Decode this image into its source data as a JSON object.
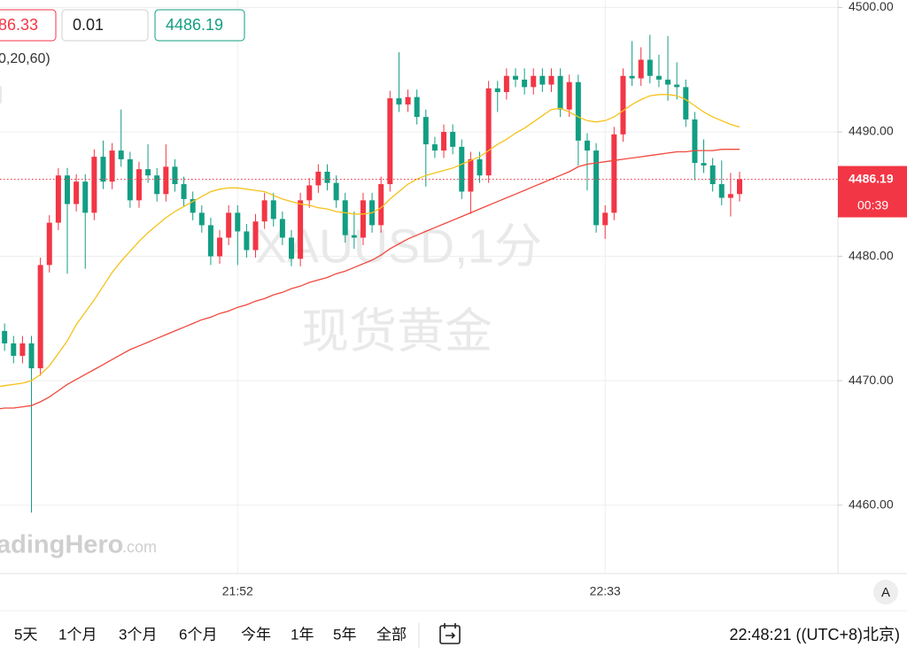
{
  "toolbar": {
    "sell_price": "86.33",
    "quantity": "0.01",
    "buy_price": "4486.19"
  },
  "indicator_label": "0,20,60)",
  "chart_data": {
    "type": "candlestick",
    "watermark": [
      "XAUUSD,1分",
      "现货黄金"
    ],
    "categories": [
      null,
      null,
      null,
      null,
      null,
      null,
      null,
      null,
      null,
      null,
      null,
      null,
      null,
      null,
      null,
      null,
      null,
      null,
      null,
      null,
      null,
      null,
      null,
      null,
      null,
      null,
      null,
      "21:52",
      null,
      null,
      null,
      null,
      null,
      null,
      null,
      null,
      null,
      null,
      null,
      null,
      null,
      null,
      null,
      null,
      null,
      null,
      null,
      null,
      null,
      null,
      null,
      null,
      null,
      null,
      null,
      null,
      null,
      null,
      null,
      null,
      null,
      null,
      null,
      null,
      null,
      null,
      null,
      null,
      "22:33",
      null,
      null,
      null,
      null,
      null,
      null,
      null,
      null,
      null,
      null,
      null,
      null,
      null,
      null,
      null
    ],
    "open": [
      4474.5,
      4474.0,
      4473.0,
      4472.0,
      4473.0,
      4471.0,
      4479.3,
      4482.7,
      4486.5,
      4484.2,
      4486.0,
      4483.5,
      4488.0,
      4486.0,
      4488.5,
      4487.8,
      4484.5,
      4487.0,
      4486.5,
      4485.0,
      4487.2,
      4485.8,
      4484.6,
      4483.5,
      4482.5,
      4480.0,
      4481.5,
      4483.5,
      4482.0,
      4480.5,
      4482.8,
      4484.5,
      4483.0,
      4481.5,
      4479.8,
      4484.5,
      4485.7,
      4486.8,
      4485.9,
      4484.5,
      4481.7,
      4481.5,
      4484.5,
      4482.5,
      4485.8,
      4492.7,
      4492.2,
      4492.8,
      4491.2,
      4489.0,
      4488.5,
      4490.0,
      4488.8,
      4485.2,
      4487.8,
      4486.5,
      4493.5,
      4493.2,
      4494.5,
      4494.2,
      4493.6,
      4494.5,
      4493.8,
      4494.5,
      4491.8,
      4494.0,
      4489.3,
      4488.5,
      4482.5,
      4483.5,
      4489.8,
      4494.5,
      4494.3,
      4495.8,
      4494.5,
      4494.2,
      4493.8,
      4493.6,
      4491.0,
      4487.5,
      4487.3,
      4485.8,
      4484.7,
      4485.0
    ],
    "high": [
      4475.1,
      4474.6,
      4473.6,
      4473.6,
      4473.6,
      4479.9,
      4483.3,
      4487.1,
      4487.1,
      4486.6,
      4486.6,
      4488.6,
      4489.3,
      4489.1,
      4491.8,
      4488.4,
      4487.6,
      4489.0,
      4487.1,
      4489.0,
      4487.8,
      4486.4,
      4485.2,
      4484.1,
      4483.1,
      4482.1,
      4484.1,
      4484.1,
      4482.6,
      4483.4,
      4485.1,
      4485.1,
      4483.6,
      4482.1,
      4485.1,
      4486.3,
      4487.4,
      4487.4,
      4486.5,
      4485.1,
      4483.6,
      4485.1,
      4485.1,
      4486.4,
      4493.3,
      4496.4,
      4493.4,
      4493.4,
      4491.8,
      4489.6,
      4490.6,
      4490.6,
      4489.4,
      4488.4,
      4488.4,
      4494.1,
      4494.1,
      4495.1,
      4495.1,
      4495.1,
      4495.1,
      4495.1,
      4495.1,
      4495.1,
      4494.6,
      4494.6,
      4489.9,
      4489.1,
      4484.1,
      4490.4,
      4495.1,
      4497.3,
      4496.8,
      4497.8,
      4496.2,
      4497.7,
      4495.6,
      4494.2,
      4491.6,
      4489.4,
      4487.9,
      4487.7,
      4486.7,
      4486.8
    ],
    "low": [
      4473.4,
      4472.4,
      4471.4,
      4471.4,
      4459.4,
      4470.4,
      4478.7,
      4482.1,
      4478.6,
      4483.6,
      4479.0,
      4482.9,
      4485.4,
      4485.4,
      4487.2,
      4483.9,
      4483.9,
      4485.9,
      4484.4,
      4484.4,
      4485.2,
      4484.0,
      4482.9,
      4481.9,
      4479.3,
      4479.4,
      4480.9,
      4479.3,
      4479.9,
      4479.9,
      4482.2,
      4482.4,
      4480.9,
      4479.2,
      4479.2,
      4483.9,
      4485.1,
      4485.3,
      4483.9,
      4481.1,
      4480.6,
      4480.9,
      4481.9,
      4481.9,
      4485.2,
      4491.6,
      4491.6,
      4490.6,
      4485.6,
      4487.9,
      4487.9,
      4488.2,
      4484.6,
      4483.4,
      4485.9,
      4485.9,
      4491.6,
      4492.6,
      4493.6,
      4493.0,
      4493.0,
      4493.2,
      4493.2,
      4491.2,
      4491.2,
      4487.3,
      4485.3,
      4481.9,
      4481.4,
      4482.9,
      4489.2,
      4493.7,
      4493.7,
      4493.9,
      4493.6,
      4492.5,
      4492.6,
      4490.4,
      4486.1,
      4486.7,
      4485.2,
      4484.1,
      4483.2,
      4484.4
    ],
    "close": [
      4474.0,
      4473.0,
      4472.0,
      4473.0,
      4471.0,
      4479.3,
      4482.7,
      4486.5,
      4484.2,
      4486.0,
      4483.5,
      4488.0,
      4486.0,
      4488.5,
      4487.8,
      4484.5,
      4487.0,
      4486.5,
      4485.0,
      4487.2,
      4485.8,
      4484.6,
      4483.5,
      4482.5,
      4480.0,
      4481.5,
      4483.5,
      4482.0,
      4480.5,
      4482.8,
      4484.5,
      4483.0,
      4481.5,
      4479.8,
      4484.5,
      4485.7,
      4486.8,
      4485.9,
      4484.5,
      4481.7,
      4481.5,
      4484.5,
      4482.5,
      4485.8,
      4492.7,
      4492.2,
      4492.8,
      4491.2,
      4489.0,
      4488.5,
      4490.0,
      4488.8,
      4485.2,
      4487.8,
      4486.5,
      4493.5,
      4493.2,
      4494.5,
      4494.2,
      4493.6,
      4494.5,
      4493.8,
      4494.5,
      4491.8,
      4494.0,
      4489.3,
      4488.5,
      4482.5,
      4483.5,
      4489.8,
      4494.5,
      4494.3,
      4495.8,
      4494.5,
      4494.2,
      4493.8,
      4493.6,
      4491.0,
      4487.5,
      4487.3,
      4485.8,
      4484.7,
      4485.0,
      4486.19
    ],
    "up_color": "#f23645",
    "down_color": "#129e83",
    "series": [
      {
        "color": "#f5c21b",
        "values": [
          4469.5,
          4469.6,
          4469.7,
          4469.8,
          4470.0,
          4470.5,
          4471.2,
          4472.2,
          4473.2,
          4474.5,
          4475.5,
          4476.5,
          4477.6,
          4478.7,
          4479.6,
          4480.4,
          4481.2,
          4481.9,
          4482.5,
          4483.1,
          4483.6,
          4484.0,
          4484.4,
          4484.8,
          4485.2,
          4485.4,
          4485.5,
          4485.5,
          4485.4,
          4485.3,
          4485.2,
          4484.9,
          4484.6,
          4484.4,
          4484.2,
          4484.1,
          4483.9,
          4483.8,
          4483.6,
          4483.5,
          4483.4,
          4483.4,
          4483.5,
          4483.9,
          4484.6,
          4485.2,
          4485.8,
          4486.2,
          4486.5,
          4486.7,
          4486.9,
          4487.1,
          4487.4,
          4487.7,
          4488.0,
          4488.5,
          4489.0,
          4489.4,
          4489.9,
          4490.3,
          4490.8,
          4491.3,
          4491.8,
          4491.9,
          4491.6,
          4491.2,
          4490.9,
          4490.8,
          4490.9,
          4491.2,
          4491.7,
          4492.2,
          4492.6,
          4492.9,
          4493.0,
          4493.0,
          4492.9,
          4492.6,
          4492.1,
          4491.6,
          4491.2,
          4490.9,
          4490.6,
          4490.4
        ]
      },
      {
        "color": "#f0483e",
        "values": [
          4467.7,
          4467.8,
          4467.8,
          4467.9,
          4468.0,
          4468.3,
          4468.7,
          4469.2,
          4469.7,
          4470.1,
          4470.5,
          4470.9,
          4471.3,
          4471.7,
          4472.1,
          4472.5,
          4472.8,
          4473.1,
          4473.4,
          4473.7,
          4474.0,
          4474.3,
          4474.6,
          4474.9,
          4475.1,
          4475.4,
          4475.6,
          4475.9,
          4476.1,
          4476.4,
          4476.6,
          4476.9,
          4477.1,
          4477.4,
          4477.6,
          4477.9,
          4478.1,
          4478.3,
          4478.6,
          4478.8,
          4479.1,
          4479.4,
          4479.7,
          4480.1,
          4480.6,
          4481.0,
          4481.4,
          4481.7,
          4482.0,
          4482.3,
          4482.6,
          4482.9,
          4483.2,
          4483.5,
          4483.8,
          4484.1,
          4484.4,
          4484.7,
          4485.0,
          4485.3,
          4485.6,
          4485.9,
          4486.2,
          4486.5,
          4486.8,
          4487.2,
          4487.4,
          4487.5,
          4487.6,
          4487.7,
          4487.8,
          4487.9,
          4488.0,
          4488.1,
          4488.2,
          4488.3,
          4488.4,
          4488.4,
          4488.5,
          4488.5,
          4488.5,
          4488.6,
          4488.6,
          4488.6
        ]
      }
    ],
    "ylim": [
      4454.5,
      4500.6
    ],
    "yticks": [
      {
        "value": 4460,
        "label": "4460.00"
      },
      {
        "value": 4470,
        "label": "4470.00"
      },
      {
        "value": 4480,
        "label": "4480.00"
      },
      {
        "value": 4490,
        "label": "4490.00"
      },
      {
        "value": 4500,
        "label": "4500.00"
      }
    ],
    "grid": true,
    "countdown": "00:39"
  },
  "brand": {
    "name": "adingHero",
    "suffix": ".com"
  },
  "axis_button": "A",
  "ranges": [
    "5天",
    "1个月",
    "3个月",
    "6个月",
    "今年",
    "1年",
    "5年",
    "全部"
  ],
  "clock": "22:48:21 ((UTC+8)北京)"
}
